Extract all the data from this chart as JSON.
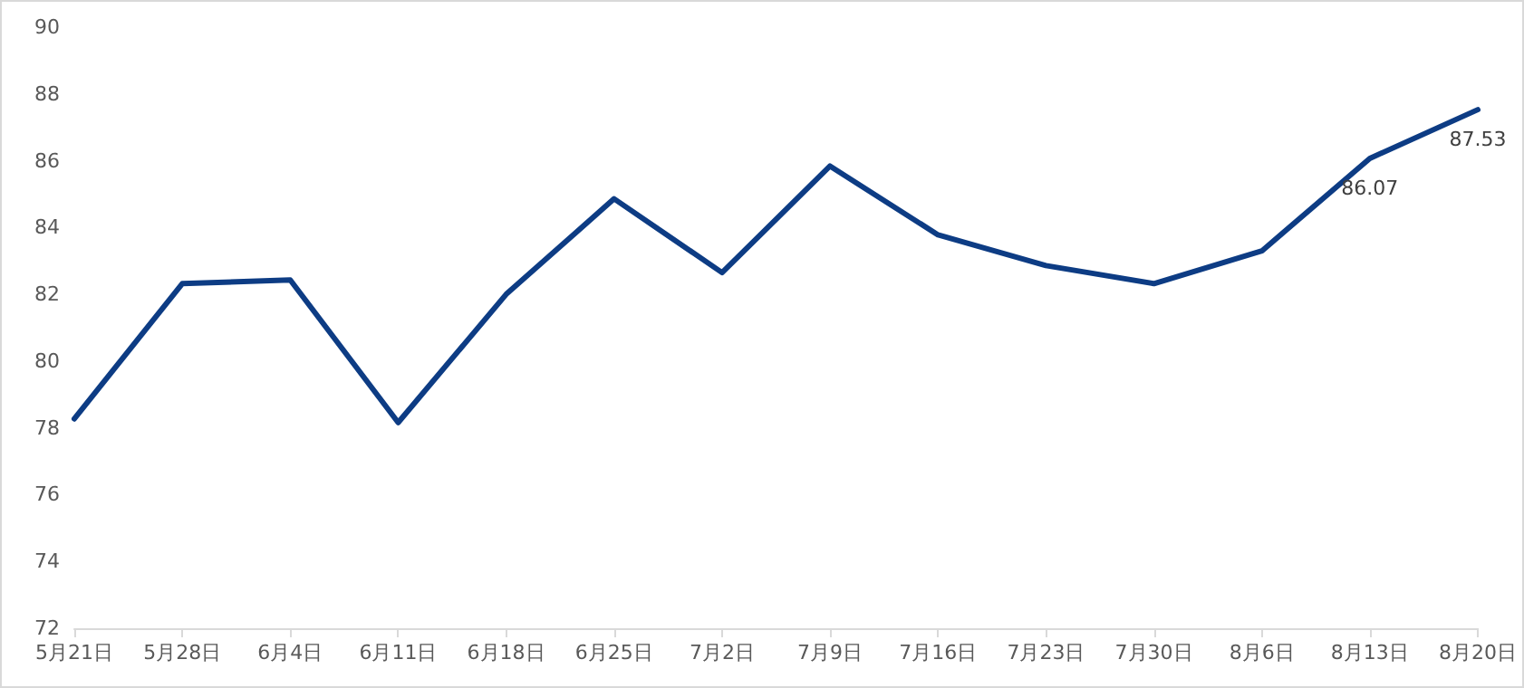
{
  "chart_data": {
    "type": "line",
    "categories": [
      "5月21日",
      "5月28日",
      "6月4日",
      "6月11日",
      "6月18日",
      "6月25日",
      "7月2日",
      "7月9日",
      "7月16日",
      "7月23日",
      "7月30日",
      "8月6日",
      "8月13日",
      "8月20日"
    ],
    "series": [
      {
        "color": "#0d3c84",
        "values": [
          78.27,
          82.32,
          82.43,
          78.16,
          82.0,
          84.86,
          82.65,
          85.84,
          83.78,
          82.86,
          82.32,
          83.3,
          86.07,
          87.53
        ],
        "value_labels": [
          null,
          null,
          null,
          null,
          null,
          null,
          null,
          null,
          null,
          null,
          null,
          null,
          "86.07",
          "87.53"
        ]
      }
    ],
    "ylim": [
      72,
      90
    ],
    "yticks": [
      72,
      74,
      76,
      78,
      80,
      82,
      84,
      86,
      88,
      90
    ],
    "grid": false,
    "marker": "none",
    "line_style": "solid"
  }
}
